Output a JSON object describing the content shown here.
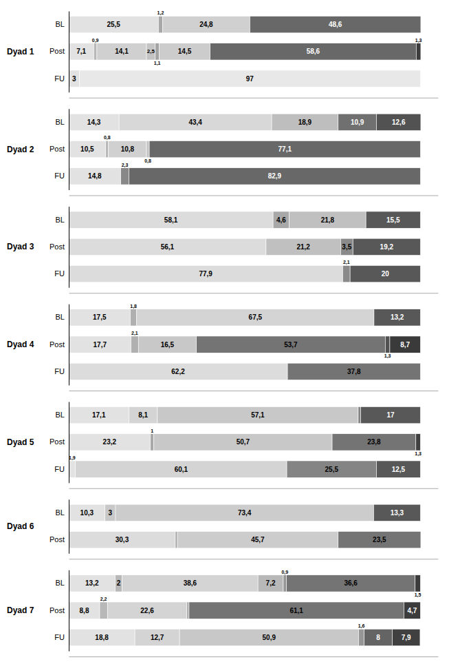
{
  "chart_data": [
    {
      "type": "bar",
      "orientation": "horizontal",
      "stacked": true,
      "data_labels": true,
      "tick_labels": "y",
      "title": "Dyad 1",
      "categories": [
        "BL",
        "Post",
        "FU"
      ],
      "xlim": [
        0,
        105
      ],
      "xticks": [],
      "series": [
        {
          "values": [
            25.5,
            7.1,
            3.0
          ],
          "colors": [
            "#e2e2e2",
            "#e2e2e2",
            "#e2e2e2"
          ],
          "value_labels": [
            "25,5",
            "7,1",
            "3"
          ]
        },
        {
          "values": [
            1.2,
            0.9,
            97.0
          ],
          "colors": [
            "#a8a8a8",
            "#b8b8b8",
            "#e8e8e8"
          ],
          "value_labels": [
            "1,2",
            "0,9",
            "97"
          ]
        },
        {
          "values": [
            24.8,
            14.1,
            null
          ],
          "colors": [
            "#d0d0d0",
            "#d0d0d0",
            null
          ],
          "value_labels": [
            "24,8",
            "14,1",
            null
          ]
        },
        {
          "values": [
            48.6,
            2.5,
            null
          ],
          "colors": [
            "#686868",
            "#c4c4c4",
            null
          ],
          "value_labels": [
            "48,6",
            "2,5",
            null
          ]
        },
        {
          "values": [
            null,
            1.1,
            null
          ],
          "colors": [
            null,
            "#a4a4a4",
            null
          ],
          "value_labels": [
            null,
            "1,1",
            null
          ]
        },
        {
          "values": [
            null,
            14.5,
            null
          ],
          "colors": [
            null,
            "#cccccc",
            null
          ],
          "value_labels": [
            null,
            "14,5",
            null
          ]
        },
        {
          "values": [
            null,
            58.6,
            null
          ],
          "colors": [
            null,
            "#686868",
            null
          ],
          "value_labels": [
            null,
            "58,6",
            null
          ]
        },
        {
          "values": [
            null,
            1.3,
            null
          ],
          "colors": [
            null,
            "#3c3c3c",
            null
          ],
          "value_labels": [
            null,
            "1,3",
            null
          ]
        }
      ]
    },
    {
      "type": "bar",
      "orientation": "horizontal",
      "stacked": true,
      "data_labels": true,
      "tick_labels": "y",
      "title": "Dyad 2",
      "categories": [
        "BL",
        "Post",
        "FU"
      ],
      "xlim": [
        0,
        105
      ],
      "xticks": [],
      "series": [
        {
          "values": [
            14.3,
            10.5,
            14.8
          ],
          "colors": [
            "#e2e2e2",
            "#e2e2e2",
            "#e2e2e2"
          ],
          "value_labels": [
            "14,3",
            "10,5",
            "14,8"
          ]
        },
        {
          "values": [
            43.4,
            0.8,
            2.3
          ],
          "colors": [
            "#d8d8d8",
            "#b8b8b8",
            "#888888"
          ],
          "value_labels": [
            "43,4",
            "0,8",
            "2,3"
          ]
        },
        {
          "values": [
            18.9,
            10.8,
            82.9
          ],
          "colors": [
            "#bebebe",
            "#d0d0d0",
            "#686868"
          ],
          "value_labels": [
            "18,9",
            "10,8",
            "82,9"
          ]
        },
        {
          "values": [
            10.9,
            0.8,
            null
          ],
          "colors": [
            "#707070",
            "#c4c4c4",
            null
          ],
          "value_labels": [
            "10,9",
            "0,8",
            null
          ]
        },
        {
          "values": [
            12.6,
            77.1,
            null
          ],
          "colors": [
            "#525252",
            "#686868",
            null
          ],
          "value_labels": [
            "12,6",
            "77,1",
            null
          ]
        }
      ]
    },
    {
      "type": "bar",
      "orientation": "horizontal",
      "stacked": true,
      "data_labels": true,
      "tick_labels": "y",
      "title": "Dyad 3",
      "categories": [
        "BL",
        "Post",
        "FU"
      ],
      "xlim": [
        0,
        105
      ],
      "xticks": [],
      "series": [
        {
          "values": [
            58.1,
            56.1,
            77.9
          ],
          "colors": [
            "#dcdcdc",
            "#dcdcdc",
            "#dcdcdc"
          ],
          "value_labels": [
            "58,1",
            "56,1",
            "77,9"
          ]
        },
        {
          "values": [
            4.6,
            21.2,
            2.1
          ],
          "colors": [
            "#a8a8a8",
            "#c0c0c0",
            "#8a8a8a"
          ],
          "value_labels": [
            "4,6",
            "21,2",
            "2,1"
          ]
        },
        {
          "values": [
            21.8,
            3.5,
            20.0
          ],
          "colors": [
            "#c0c0c0",
            "#8a8a8a",
            "#585858"
          ],
          "value_labels": [
            "21,8",
            "3,5",
            "20"
          ]
        },
        {
          "values": [
            15.5,
            19.2,
            null
          ],
          "colors": [
            "#585858",
            "#585858",
            null
          ],
          "value_labels": [
            "15,5",
            "19,2",
            null
          ]
        }
      ]
    },
    {
      "type": "bar",
      "orientation": "horizontal",
      "stacked": true,
      "data_labels": true,
      "tick_labels": "y",
      "title": "Dyad 4",
      "categories": [
        "BL",
        "Post",
        "FU"
      ],
      "xlim": [
        0,
        105
      ],
      "xticks": [],
      "series": [
        {
          "values": [
            17.5,
            17.7,
            62.2
          ],
          "colors": [
            "#e2e2e2",
            "#e2e2e2",
            "#dcdcdc"
          ],
          "value_labels": [
            "17,5",
            "17,7",
            "62,2"
          ]
        },
        {
          "values": [
            1.8,
            2.1,
            37.8
          ],
          "colors": [
            "#b0b0b0",
            "#b0b0b0",
            "#747474"
          ],
          "value_labels": [
            "1,8",
            "2,1",
            "37,8"
          ]
        },
        {
          "values": [
            67.5,
            16.5,
            null
          ],
          "colors": [
            "#d4d4d4",
            "#c8c8c8",
            null
          ],
          "value_labels": [
            "67,5",
            "16,5",
            null
          ]
        },
        {
          "values": [
            13.2,
            53.7,
            null
          ],
          "colors": [
            "#585858",
            "#747474",
            null
          ],
          "value_labels": [
            "13,2",
            "53,7",
            null
          ]
        },
        {
          "values": [
            null,
            1.3,
            null
          ],
          "colors": [
            null,
            "#525252",
            null
          ],
          "value_labels": [
            null,
            "1,3",
            null
          ]
        },
        {
          "values": [
            null,
            8.7,
            null
          ],
          "colors": [
            null,
            "#3a3a3a",
            null
          ],
          "value_labels": [
            null,
            "8,7",
            null
          ]
        }
      ]
    },
    {
      "type": "bar",
      "orientation": "horizontal",
      "stacked": true,
      "data_labels": true,
      "tick_labels": "y",
      "title": "Dyad 5",
      "categories": [
        "BL",
        "Post",
        "FU"
      ],
      "xlim": [
        0,
        105
      ],
      "xticks": [],
      "series": [
        {
          "values": [
            17.1,
            23.2,
            1.9
          ],
          "colors": [
            "#e2e2e2",
            "#e2e2e2",
            "#e2e2e2"
          ],
          "value_labels": [
            "17,1",
            "23,2",
            "1,9"
          ]
        },
        {
          "values": [
            8.1,
            1.0,
            60.1
          ],
          "colors": [
            "#d4d4d4",
            "#a8a8a8",
            "#d4d4d4"
          ],
          "value_labels": [
            "8,1",
            "1",
            "60,1"
          ]
        },
        {
          "values": [
            57.1,
            50.7,
            25.5
          ],
          "colors": [
            "#c8c8c8",
            "#c8c8c8",
            "#848484"
          ],
          "value_labels": [
            "57,1",
            "50,7",
            "25,5"
          ]
        },
        {
          "values": [
            0.7,
            23.8,
            12.5
          ],
          "colors": [
            "#848484",
            "#747474",
            "#585858"
          ],
          "value_labels": [
            null,
            "23,8",
            "12,5"
          ]
        },
        {
          "values": [
            17.0,
            1.3,
            null
          ],
          "colors": [
            "#585858",
            "#404040",
            null
          ],
          "value_labels": [
            "17",
            "1,3",
            null
          ]
        }
      ]
    },
    {
      "type": "bar",
      "orientation": "horizontal",
      "stacked": true,
      "data_labels": true,
      "tick_labels": "y",
      "title": "Dyad 6",
      "categories": [
        "BL",
        "Post"
      ],
      "xlim": [
        0,
        105
      ],
      "xticks": [],
      "series": [
        {
          "values": [
            10.3,
            30.3
          ],
          "colors": [
            "#e2e2e2",
            "#dcdcdc"
          ],
          "value_labels": [
            "10,3",
            "30,3"
          ]
        },
        {
          "values": [
            3.0,
            0.6
          ],
          "colors": [
            "#c8c8c8",
            "#a8a8a8"
          ],
          "value_labels": [
            "3",
            null
          ]
        },
        {
          "values": [
            73.4,
            45.7
          ],
          "colors": [
            "#cccccc",
            "#cccccc"
          ],
          "value_labels": [
            "73,4",
            "45,7"
          ]
        },
        {
          "values": [
            13.3,
            23.5
          ],
          "colors": [
            "#585858",
            "#747474"
          ],
          "value_labels": [
            "13,3",
            "23,5"
          ]
        }
      ]
    },
    {
      "type": "bar",
      "orientation": "horizontal",
      "stacked": true,
      "data_labels": true,
      "tick_labels": "y",
      "title": "Dyad 7",
      "categories": [
        "BL",
        "Post",
        "FU"
      ],
      "xlim": [
        0,
        105
      ],
      "xticks": [],
      "series": [
        {
          "values": [
            13.2,
            8.8,
            18.8
          ],
          "colors": [
            "#e2e2e2",
            "#e2e2e2",
            "#e2e2e2"
          ],
          "value_labels": [
            "13,2",
            "8,8",
            "18,8"
          ]
        },
        {
          "values": [
            2.0,
            2.2,
            12.7
          ],
          "colors": [
            "#b8b8b8",
            "#b8b8b8",
            "#d4d4d4"
          ],
          "value_labels": [
            "2",
            "2,2",
            "12,7"
          ]
        },
        {
          "values": [
            38.6,
            22.6,
            50.9
          ],
          "colors": [
            "#d4d4d4",
            "#d4d4d4",
            "#c8c8c8"
          ],
          "value_labels": [
            "38,6",
            "22,6",
            "50,9"
          ]
        },
        {
          "values": [
            7.2,
            0.6,
            1.6
          ],
          "colors": [
            "#b8b8b8",
            "#a8a8a8",
            "#969696"
          ],
          "value_labels": [
            "7,2",
            null,
            "1,6"
          ]
        },
        {
          "values": [
            0.9,
            61.1,
            8.0
          ],
          "colors": [
            "#969696",
            "#747474",
            "#646464"
          ],
          "value_labels": [
            "0,9",
            "61,1",
            "8"
          ]
        },
        {
          "values": [
            36.6,
            4.7,
            7.9
          ],
          "colors": [
            "#747474",
            "#3c3c3c",
            "#404040"
          ],
          "value_labels": [
            "36,6",
            "4,7",
            "7,9"
          ]
        },
        {
          "values": [
            1.5,
            null,
            null
          ],
          "colors": [
            "#3c3c3c",
            null,
            null
          ],
          "value_labels": [
            "1,5",
            null,
            null
          ]
        }
      ]
    }
  ]
}
